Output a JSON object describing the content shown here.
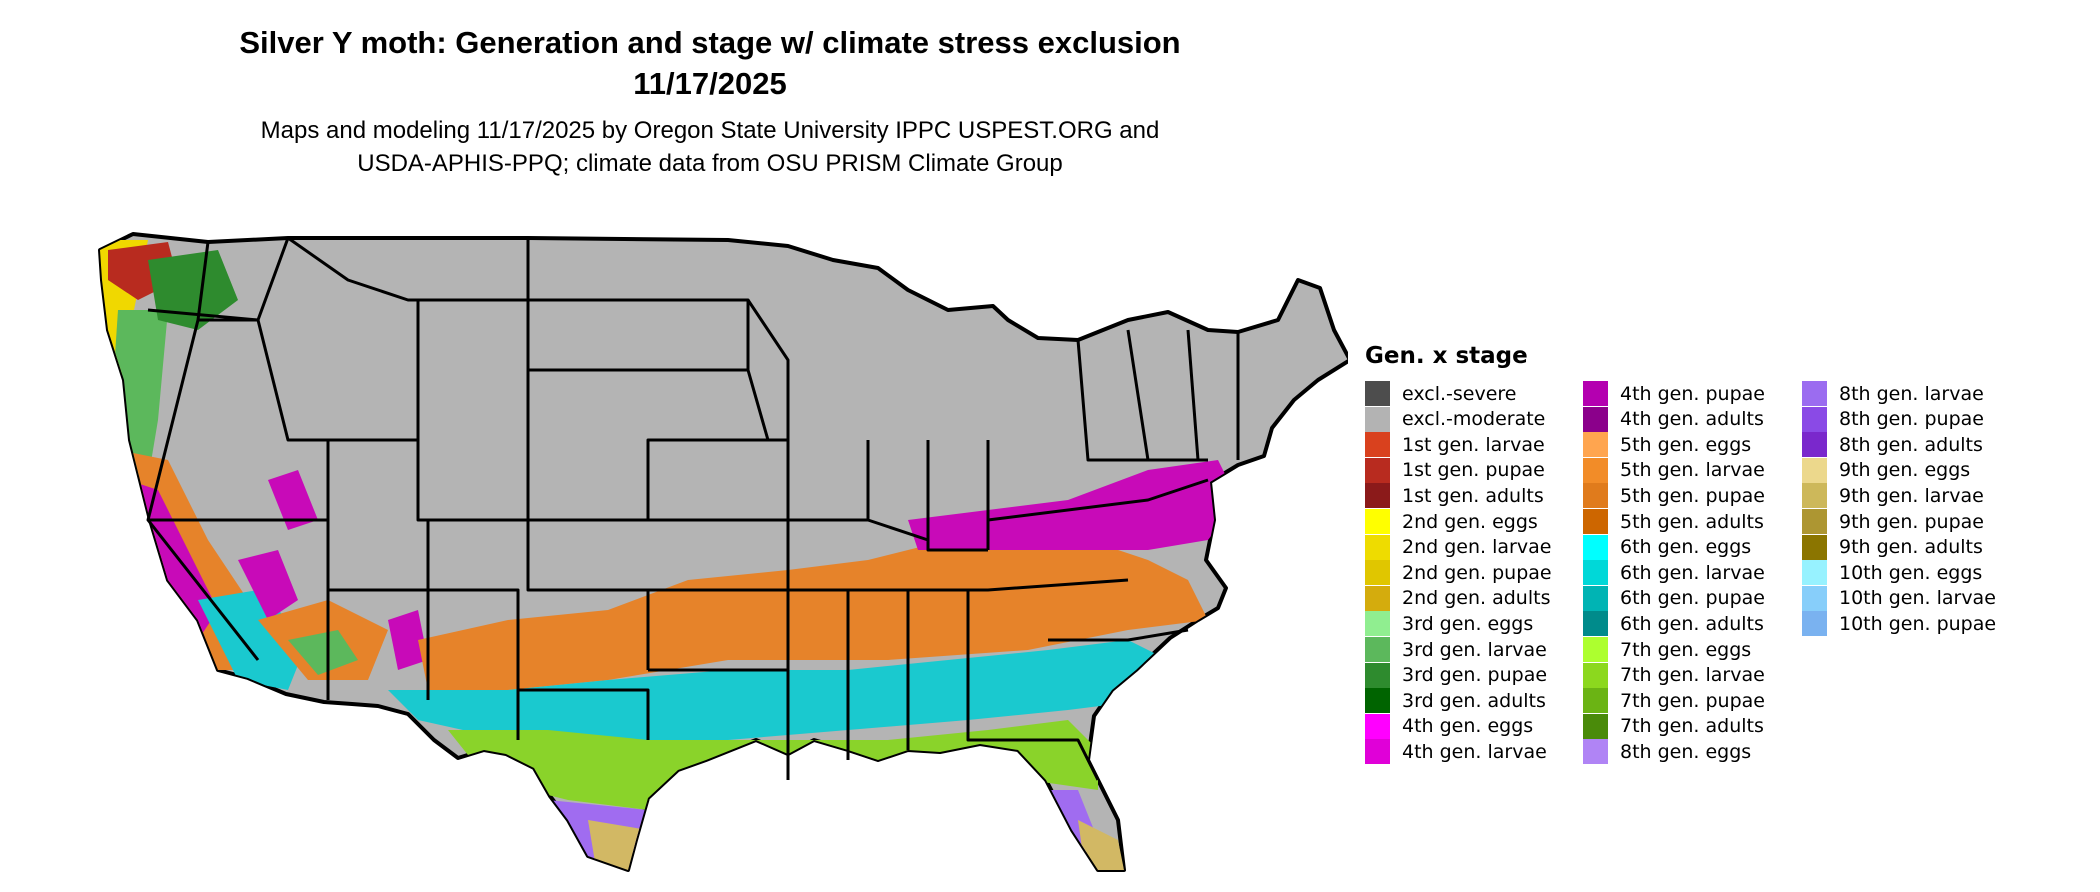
{
  "header": {
    "title_line1": "Silver Y moth: Generation and stage w/ climate stress exclusion",
    "title_line2": "11/17/2025",
    "subtitle_line1": "Maps and modeling 11/17/2025 by Oregon State University IPPC USPEST.ORG and",
    "subtitle_line2": "USDA-APHIS-PPQ; climate data from OSU PRISM Climate Group"
  },
  "map": {
    "colors": {
      "state_fill": "#b4b4b4",
      "boundary": "#000000",
      "orange": "#e6832a",
      "cyan": "#1ac9cf",
      "green": "#8ad32a",
      "purple": "#a06cf0",
      "magenta": "#c80ab8",
      "tan": "#d2b864",
      "yellow": "#f0d800"
    }
  },
  "legend": {
    "title": "Gen. x stage",
    "items": [
      {
        "label": "excl.-severe",
        "color": "#4d4d4d"
      },
      {
        "label": "excl.-moderate",
        "color": "#b3b3b3"
      },
      {
        "label": "1st gen. larvae",
        "color": "#d9411e"
      },
      {
        "label": "1st gen. pupae",
        "color": "#b82b1f"
      },
      {
        "label": "1st gen. adults",
        "color": "#8b1a1a"
      },
      {
        "label": "2nd gen. eggs",
        "color": "#ffff00"
      },
      {
        "label": "2nd gen. larvae",
        "color": "#eedc00"
      },
      {
        "label": "2nd gen. pupae",
        "color": "#e0c600"
      },
      {
        "label": "2nd gen. adults",
        "color": "#d4ac0d"
      },
      {
        "label": "3rd gen. eggs",
        "color": "#90ee90"
      },
      {
        "label": "3rd gen. larvae",
        "color": "#5cb85c"
      },
      {
        "label": "3rd gen. pupae",
        "color": "#2e8b2e"
      },
      {
        "label": "3rd gen. adults",
        "color": "#006400"
      },
      {
        "label": "4th gen. eggs",
        "color": "#ff00ff"
      },
      {
        "label": "4th gen. larvae",
        "color": "#e000d8"
      },
      {
        "label": "4th gen. pupae",
        "color": "#b400b0"
      },
      {
        "label": "4th gen. adults",
        "color": "#8b008b"
      },
      {
        "label": "5th gen. eggs",
        "color": "#ffa54f"
      },
      {
        "label": "5th gen. larvae",
        "color": "#f28c28"
      },
      {
        "label": "5th gen. pupae",
        "color": "#e07b1c"
      },
      {
        "label": "5th gen. adults",
        "color": "#cd6600"
      },
      {
        "label": "6th gen. eggs",
        "color": "#00ffff"
      },
      {
        "label": "6th gen. larvae",
        "color": "#00d8d8"
      },
      {
        "label": "6th gen. pupae",
        "color": "#00b4b4"
      },
      {
        "label": "6th gen. adults",
        "color": "#008b8b"
      },
      {
        "label": "7th gen. eggs",
        "color": "#adff2f"
      },
      {
        "label": "7th gen. larvae",
        "color": "#8cd81e"
      },
      {
        "label": "7th gen. pupae",
        "color": "#6bb414"
      },
      {
        "label": "7th gen. adults",
        "color": "#4a8b0a"
      },
      {
        "label": "8th gen. eggs",
        "color": "#b084f5"
      },
      {
        "label": "8th gen. larvae",
        "color": "#9b6cf0"
      },
      {
        "label": "8th gen. pupae",
        "color": "#8a4ae6"
      },
      {
        "label": "8th gen. adults",
        "color": "#7a28cc"
      },
      {
        "label": "9th gen. eggs",
        "color": "#ecd88c"
      },
      {
        "label": "9th gen. larvae",
        "color": "#cdb85a"
      },
      {
        "label": "9th gen. pupae",
        "color": "#ad9632"
      },
      {
        "label": "9th gen. adults",
        "color": "#8b7500"
      },
      {
        "label": "10th gen. eggs",
        "color": "#97f2ff"
      },
      {
        "label": "10th gen. larvae",
        "color": "#87cefa"
      },
      {
        "label": "10th gen. pupae",
        "color": "#7ab2f0"
      }
    ]
  }
}
